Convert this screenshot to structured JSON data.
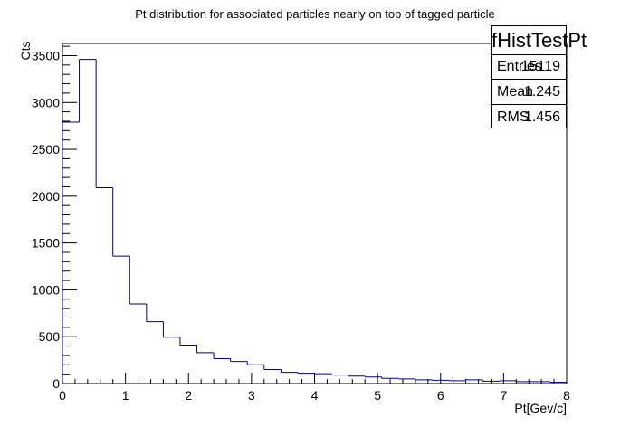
{
  "chart_data": {
    "type": "histogram",
    "title": "Pt distribution for associated particles nearly on top of tagged particle",
    "xlabel": "Pt[Gev/c]",
    "ylabel": "Cts",
    "xlim": [
      0,
      8
    ],
    "ylim": [
      0,
      3630
    ],
    "bin_edges": [
      0,
      0.2667,
      0.5333,
      0.8,
      1.0667,
      1.3333,
      1.6,
      1.8667,
      2.1333,
      2.4,
      2.6667,
      2.9333,
      3.2,
      3.4667,
      3.7333,
      4.0,
      4.2667,
      4.5333,
      4.8,
      5.0667,
      5.3333,
      5.6,
      5.8667,
      6.1333,
      6.4,
      6.6667,
      6.9333,
      7.2,
      7.4667,
      7.7333,
      8.0
    ],
    "values": [
      2790,
      3460,
      2090,
      1360,
      850,
      660,
      495,
      410,
      330,
      265,
      235,
      200,
      150,
      120,
      110,
      105,
      90,
      80,
      70,
      55,
      50,
      40,
      35,
      30,
      40,
      25,
      30,
      20,
      20,
      15
    ],
    "x_ticks": [
      "0",
      "1",
      "2",
      "3",
      "4",
      "5",
      "6",
      "7",
      "8"
    ],
    "y_ticks": [
      "0",
      "500",
      "1000",
      "1500",
      "2000",
      "2500",
      "3000",
      "3500"
    ],
    "line_color": "#00007f",
    "grid": false
  },
  "stats": {
    "name": "fHistTestPt",
    "rows": [
      {
        "label": "Entries",
        "value": "15119"
      },
      {
        "label": "Mean",
        "value": "1.245"
      },
      {
        "label": "RMS",
        "value": "1.456"
      }
    ]
  }
}
